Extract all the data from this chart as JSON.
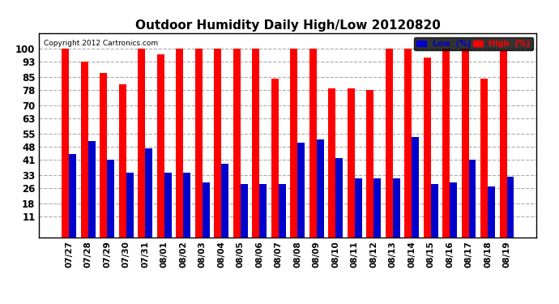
{
  "title": "Outdoor Humidity Daily High/Low 20120820",
  "copyright": "Copyright 2012 Cartronics.com",
  "categories": [
    "07/27",
    "07/28",
    "07/29",
    "07/30",
    "07/31",
    "08/01",
    "08/02",
    "08/03",
    "08/04",
    "08/05",
    "08/06",
    "08/07",
    "08/08",
    "08/09",
    "08/10",
    "08/11",
    "08/12",
    "08/13",
    "08/14",
    "08/15",
    "08/16",
    "08/17",
    "08/18",
    "08/19"
  ],
  "high": [
    100,
    93,
    87,
    81,
    100,
    97,
    100,
    100,
    100,
    100,
    100,
    84,
    100,
    100,
    79,
    79,
    78,
    100,
    100,
    95,
    100,
    100,
    84,
    99
  ],
  "low": [
    44,
    51,
    41,
    34,
    47,
    34,
    34,
    29,
    39,
    28,
    28,
    28,
    50,
    52,
    42,
    31,
    31,
    31,
    53,
    28,
    29,
    41,
    27,
    32
  ],
  "high_color": "#ff0000",
  "low_color": "#0000cc",
  "bg_color": "#ffffff",
  "plot_bg_color": "#ffffff",
  "grid_color": "#aaaaaa",
  "yticks": [
    11,
    18,
    26,
    33,
    41,
    48,
    55,
    63,
    70,
    78,
    85,
    93,
    100
  ],
  "ylim": [
    0,
    108
  ],
  "bar_width": 0.38,
  "legend_low_label": "Low  (%)",
  "legend_high_label": "High  (%)"
}
